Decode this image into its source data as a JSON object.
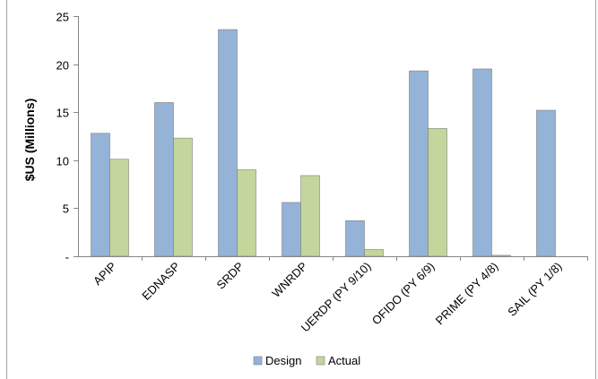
{
  "chart_data": {
    "type": "bar",
    "categories": [
      "APIP",
      "EDNASP",
      "SRDP",
      "WNRDP",
      "UERDP (PY 9/10)",
      "OFIDO (PY 6/9)",
      "PRIME (PY 4/8)",
      "SAIL (PY 1/8)"
    ],
    "series": [
      {
        "name": "Design",
        "values": [
          12.8,
          16.0,
          23.6,
          5.6,
          3.7,
          19.3,
          19.5,
          15.2
        ],
        "color": "#95b3d7"
      },
      {
        "name": "Actual",
        "values": [
          10.1,
          12.3,
          9.0,
          8.4,
          0.7,
          13.3,
          0.1,
          0
        ],
        "color": "#c3d69b"
      }
    ],
    "title": "",
    "xlabel": "",
    "ylabel": "$US (Millions)",
    "ylim": [
      0,
      25
    ],
    "yticks": [
      {
        "value": 0,
        "label": "-"
      },
      {
        "value": 5,
        "label": "5"
      },
      {
        "value": 10,
        "label": "10"
      },
      {
        "value": 15,
        "label": "15"
      },
      {
        "value": 20,
        "label": "20"
      },
      {
        "value": 25,
        "label": "25"
      }
    ],
    "grid": false,
    "legend_position": "bottom"
  }
}
